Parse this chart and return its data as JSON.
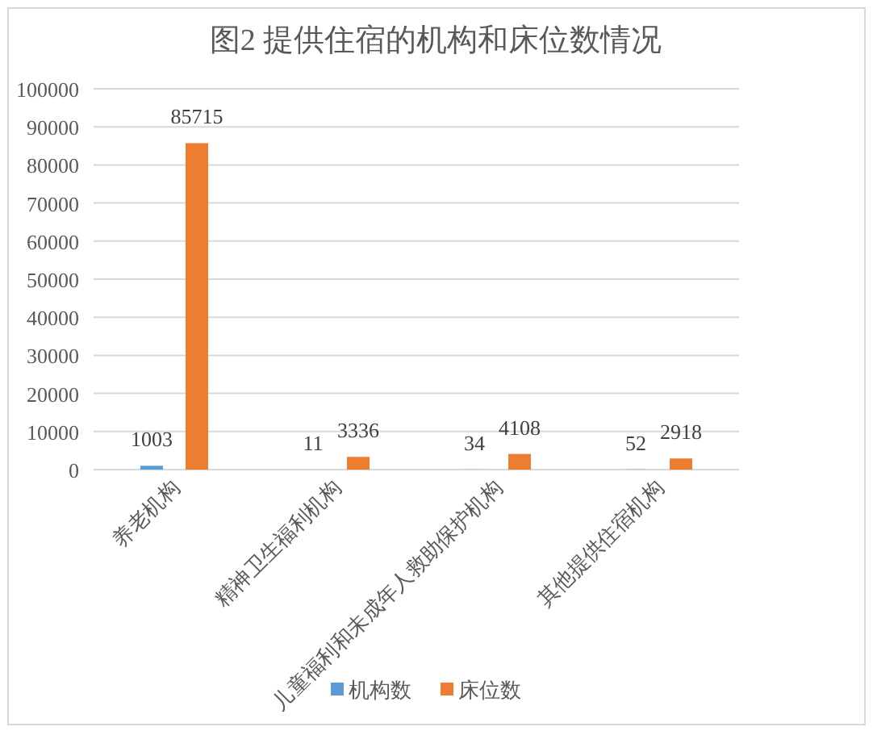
{
  "chart_data": {
    "type": "bar",
    "title": "图2  提供住宿的机构和床位数情况",
    "categories": [
      "养老机构",
      "精神卫生福利机构",
      "儿童福利和未成年人救助保护机构",
      "其他提供住宿机构"
    ],
    "series": [
      {
        "name": "机构数",
        "color": "#5b9bd5",
        "values": [
          1003,
          11,
          34,
          52
        ]
      },
      {
        "name": "床位数",
        "color": "#ed7d31",
        "values": [
          85715,
          3336,
          4108,
          2918
        ]
      }
    ],
    "ylim": [
      0,
      100000
    ],
    "yticks": [
      0,
      10000,
      20000,
      30000,
      40000,
      50000,
      60000,
      70000,
      80000,
      90000,
      100000
    ],
    "grid": "y",
    "legend": "bottom",
    "data_labels": true
  }
}
